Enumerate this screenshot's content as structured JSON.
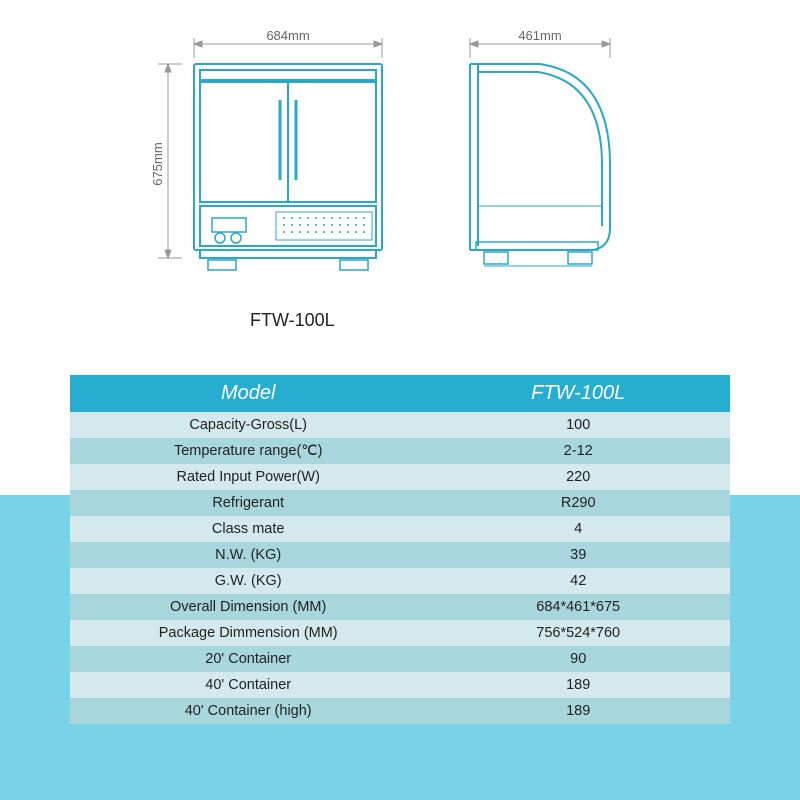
{
  "diagram": {
    "model_label": "FTW-100L",
    "front": {
      "width_label": "684mm",
      "height_label": "675mm",
      "stroke": "#2aa8c8",
      "dim_stroke": "#999999",
      "text_color": "#666666"
    },
    "side": {
      "depth_label": "461mm",
      "stroke": "#2aa8c8",
      "dim_stroke": "#999999",
      "text_color": "#666666"
    }
  },
  "table": {
    "header_bg": "#26aed1",
    "header_color": "#ffffff",
    "row_odd_bg": "#d3e9ed",
    "row_even_bg": "#a8d6dd",
    "overlay_bg": "#78d3e8",
    "columns": [
      "Model",
      "FTW-100L"
    ],
    "rows": [
      [
        "Capacity-Gross(L)",
        "100"
      ],
      [
        "Temperature range(℃)",
        "2-12"
      ],
      [
        "Rated Input Power(W)",
        "220"
      ],
      [
        "Refrigerant",
        "R290"
      ],
      [
        "Class mate",
        "4"
      ],
      [
        "N.W. (KG)",
        "39"
      ],
      [
        "G.W. (KG)",
        "42"
      ],
      [
        "Overall Dimension (MM)",
        "684*461*675"
      ],
      [
        "Package Dimmension (MM)",
        "756*524*760"
      ],
      [
        "20' Container",
        "90"
      ],
      [
        "40' Container",
        "189"
      ],
      [
        "40' Container (high)",
        "189"
      ]
    ]
  }
}
